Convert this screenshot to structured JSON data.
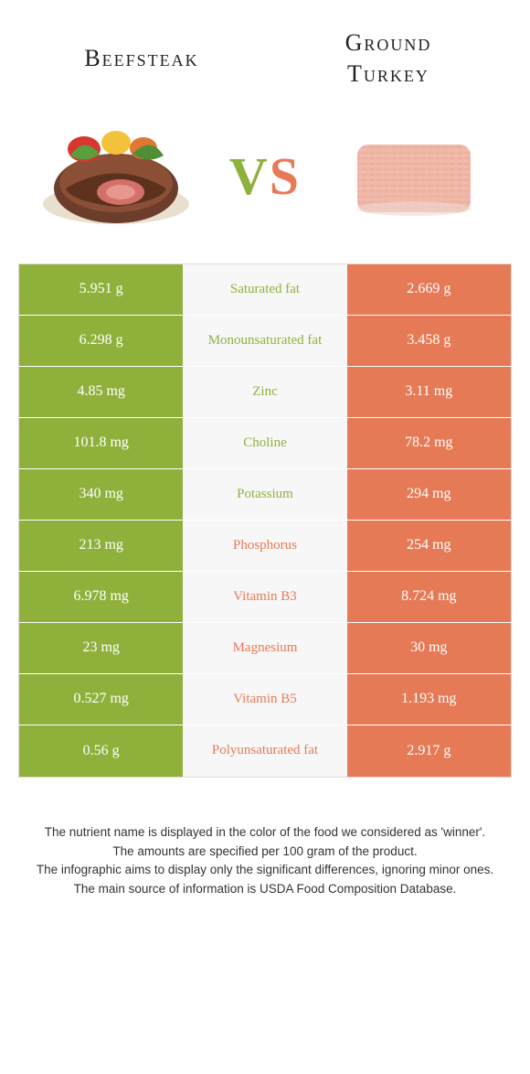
{
  "colors": {
    "left": "#8fb13c",
    "right": "#e77a56",
    "mid_bg": "#f7f7f7",
    "border": "#dddddd"
  },
  "food_left": {
    "title": "Beefsteak"
  },
  "food_right": {
    "title_line1": "Ground",
    "title_line2": "Turkey"
  },
  "vs": {
    "v": "V",
    "s": "S"
  },
  "rows": [
    {
      "left": "5.951 g",
      "label": "Saturated fat",
      "right": "2.669 g",
      "winner": "left"
    },
    {
      "left": "6.298 g",
      "label": "Monounsaturated fat",
      "right": "3.458 g",
      "winner": "left"
    },
    {
      "left": "4.85 mg",
      "label": "Zinc",
      "right": "3.11 mg",
      "winner": "left"
    },
    {
      "left": "101.8 mg",
      "label": "Choline",
      "right": "78.2 mg",
      "winner": "left"
    },
    {
      "left": "340 mg",
      "label": "Potassium",
      "right": "294 mg",
      "winner": "left"
    },
    {
      "left": "213 mg",
      "label": "Phosphorus",
      "right": "254 mg",
      "winner": "right"
    },
    {
      "left": "6.978 mg",
      "label": "Vitamin B3",
      "right": "8.724 mg",
      "winner": "right"
    },
    {
      "left": "23 mg",
      "label": "Magnesium",
      "right": "30 mg",
      "winner": "right"
    },
    {
      "left": "0.527 mg",
      "label": "Vitamin B5",
      "right": "1.193 mg",
      "winner": "right"
    },
    {
      "left": "0.56 g",
      "label": "Polyunsaturated fat",
      "right": "2.917 g",
      "winner": "right"
    }
  ],
  "footnotes": {
    "l1": "The nutrient name is displayed in the color of the food we considered as 'winner'.",
    "l2": "The amounts are specified per 100 gram of the product.",
    "l3": "The infographic aims to display only the significant differences, ignoring minor ones.",
    "l4": "The main source of information is USDA Food Composition Database."
  }
}
